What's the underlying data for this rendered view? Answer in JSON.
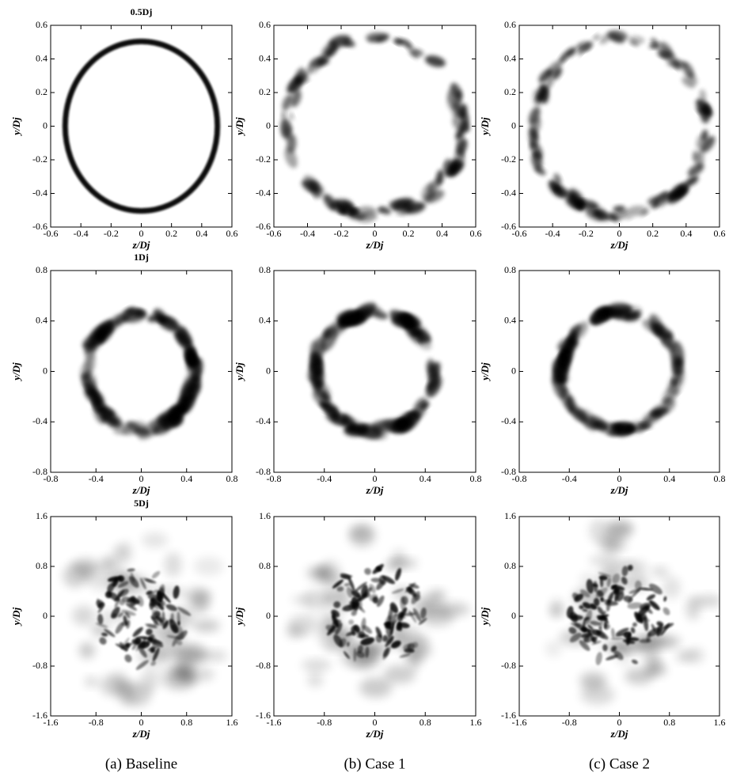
{
  "chart_data": [
    {
      "type": "contour",
      "title": "0.5Dj",
      "xlabel": "z/Dj",
      "ylabel": "y/Dj",
      "xlim": [
        -0.6,
        0.6
      ],
      "ylim": [
        -0.6,
        0.6
      ],
      "xticks": [
        -0.6,
        -0.4,
        -0.2,
        0,
        0.2,
        0.4,
        0.6
      ],
      "yticks": [
        -0.6,
        -0.4,
        -0.2,
        0,
        0.2,
        0.4,
        0.6
      ]
    },
    {
      "type": "contour",
      "xlabel": "z/Dj",
      "ylabel": "y/Dj",
      "xlim": [
        -0.6,
        0.6
      ],
      "ylim": [
        -0.6,
        0.6
      ],
      "xticks": [
        -0.6,
        -0.4,
        -0.2,
        0,
        0.2,
        0.4,
        0.6
      ],
      "yticks": [
        -0.6,
        -0.4,
        -0.2,
        0,
        0.2,
        0.4,
        0.6
      ]
    },
    {
      "type": "contour",
      "xlabel": "z/Dj",
      "ylabel": "y/Dj",
      "xlim": [
        -0.6,
        0.6
      ],
      "ylim": [
        -0.6,
        0.6
      ],
      "xticks": [
        -0.6,
        -0.4,
        -0.2,
        0,
        0.2,
        0.4,
        0.6
      ],
      "yticks": [
        -0.6,
        -0.4,
        -0.2,
        0,
        0.2,
        0.4,
        0.6
      ]
    },
    {
      "type": "contour",
      "title": "1Dj",
      "xlabel": "z/Dj",
      "ylabel": "y/Dj",
      "xlim": [
        -0.8,
        0.8
      ],
      "ylim": [
        -0.8,
        0.8
      ],
      "xticks": [
        -0.8,
        -0.4,
        0,
        0.4,
        0.8
      ],
      "yticks": [
        -0.8,
        -0.4,
        0,
        0.4,
        0.8
      ]
    },
    {
      "type": "contour",
      "xlabel": "z/Dj",
      "ylabel": "y/Dj",
      "xlim": [
        -0.8,
        0.8
      ],
      "ylim": [
        -0.8,
        0.8
      ],
      "xticks": [
        -0.8,
        -0.4,
        0,
        0.4,
        0.8
      ],
      "yticks": [
        -0.8,
        -0.4,
        0,
        0.4,
        0.8
      ]
    },
    {
      "type": "contour",
      "xlabel": "z/Dj",
      "ylabel": "y/Dj",
      "xlim": [
        -0.8,
        0.8
      ],
      "ylim": [
        -0.8,
        0.8
      ],
      "xticks": [
        -0.8,
        -0.4,
        0,
        0.4,
        0.8
      ],
      "yticks": [
        -0.8,
        -0.4,
        0,
        0.4,
        0.8
      ]
    },
    {
      "type": "contour",
      "title": "5Dj",
      "xlabel": "z/Dj",
      "ylabel": "y/Dj",
      "xlim": [
        -1.6,
        1.6
      ],
      "ylim": [
        -1.6,
        1.6
      ],
      "xticks": [
        -1.6,
        -0.8,
        0,
        0.8,
        1.6
      ],
      "yticks": [
        -1.6,
        -0.8,
        0,
        0.8,
        1.6
      ],
      "caption": "(a) Baseline"
    },
    {
      "type": "contour",
      "xlabel": "z/Dj",
      "ylabel": "y/Dj",
      "xlim": [
        -1.6,
        1.6
      ],
      "ylim": [
        -1.6,
        1.6
      ],
      "xticks": [
        -1.6,
        -0.8,
        0,
        0.8,
        1.6
      ],
      "yticks": [
        -1.6,
        -0.8,
        0,
        0.8,
        1.6
      ],
      "caption": "(b) Case 1"
    },
    {
      "type": "contour",
      "xlabel": "z/Dj",
      "ylabel": "y/Dj",
      "xlim": [
        -1.6,
        1.6
      ],
      "ylim": [
        -1.6,
        1.6
      ],
      "xticks": [
        -1.6,
        -0.8,
        0,
        0.8,
        1.6
      ],
      "yticks": [
        -1.6,
        -0.8,
        0,
        0.8,
        1.6
      ],
      "caption": "(c) Case 2"
    }
  ]
}
